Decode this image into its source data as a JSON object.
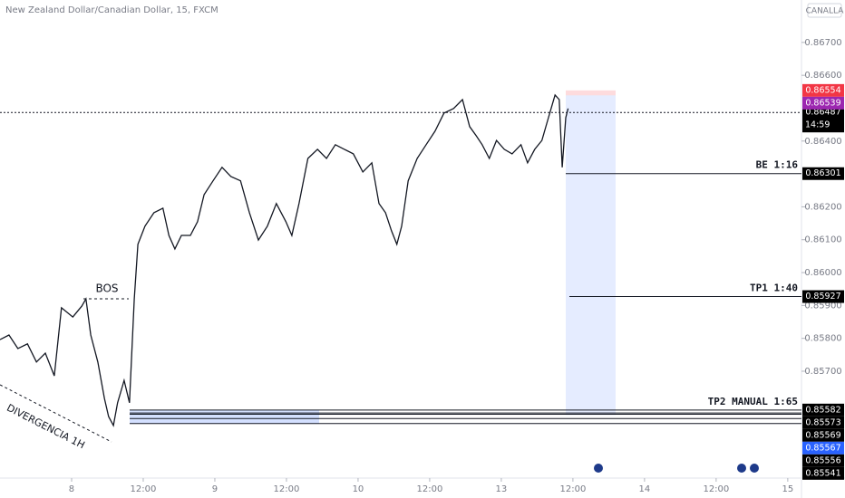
{
  "header": {
    "title": "New Zealand Dollar/Canadian Dollar, 15, FXCM",
    "badge": "CANALLA"
  },
  "chart_data": {
    "type": "line",
    "color": "#131722",
    "x": [
      -12.0,
      -10.5,
      -9.0,
      -7.4,
      -5.9,
      -4.4,
      -2.9,
      -1.7,
      0.2,
      1.7,
      2.4,
      3.2,
      4.4,
      5.5,
      6.2,
      7.0,
      7.7,
      8.8,
      9.7,
      10.5,
      11.1,
      12.3,
      13.8,
      15.3,
      16.3,
      17.3,
      18.4,
      19.9,
      21.1,
      22.2,
      23.7,
      25.2,
      26.7,
      28.3,
      29.8,
      31.3,
      32.8,
      34.3,
      35.9,
      36.9,
      38.1,
      39.6,
      41.2,
      42.7,
      44.2,
      45.7,
      47.2,
      48.8,
      50.3,
      51.5,
      52.6,
      53.6,
      54.5,
      55.3,
      56.4,
      57.9,
      59.4,
      60.9,
      62.4,
      64.0,
      65.5,
      66.7,
      67.8,
      68.8,
      70.0,
      71.2,
      72.5,
      73.8,
      75.3,
      76.4,
      77.6,
      78.8,
      79.9,
      81.0,
      81.7,
      82.2,
      82.8,
      83.2
    ],
    "values": [
      0.85796,
      0.8581,
      0.85769,
      0.85783,
      0.85728,
      0.85755,
      0.85686,
      0.85893,
      0.85865,
      0.85898,
      0.8592,
      0.8581,
      0.85728,
      0.85617,
      0.85562,
      0.85535,
      0.85604,
      0.85672,
      0.85604,
      0.8592,
      0.86086,
      0.86141,
      0.86182,
      0.86196,
      0.86113,
      0.86072,
      0.86113,
      0.86113,
      0.86155,
      0.86237,
      0.86279,
      0.8632,
      0.86292,
      0.86279,
      0.86182,
      0.86099,
      0.86141,
      0.8621,
      0.86155,
      0.86113,
      0.8621,
      0.86347,
      0.86375,
      0.86347,
      0.86389,
      0.86375,
      0.86361,
      0.86306,
      0.86334,
      0.8621,
      0.86182,
      0.86127,
      0.86086,
      0.86141,
      0.86279,
      0.86347,
      0.86389,
      0.8643,
      0.86485,
      0.86499,
      0.86526,
      0.86444,
      0.86416,
      0.86389,
      0.86347,
      0.86402,
      0.86375,
      0.86361,
      0.86389,
      0.86334,
      0.86375,
      0.86402,
      0.86471,
      0.8654,
      0.86526,
      0.8632,
      0.86471,
      0.86499
    ],
    "xlim": [
      -12,
      122.3
    ],
    "ylim": [
      0.85375,
      0.86829
    ],
    "xticks": [
      {
        "value": 0,
        "label": "8"
      },
      {
        "value": 12,
        "label": "12:00"
      },
      {
        "value": 24,
        "label": "9"
      },
      {
        "value": 36,
        "label": "12:00"
      },
      {
        "value": 48,
        "label": "10"
      },
      {
        "value": 60,
        "label": "12:00"
      },
      {
        "value": 72,
        "label": "13"
      },
      {
        "value": 84,
        "label": "12:00"
      },
      {
        "value": 96,
        "label": "14"
      },
      {
        "value": 108,
        "label": "12:00"
      },
      {
        "value": 120,
        "label": "15"
      }
    ],
    "yticks": [
      {
        "value": 0.867,
        "label": "0.86700"
      },
      {
        "value": 0.866,
        "label": "0.86600"
      },
      {
        "value": 0.864,
        "label": "0.86400"
      },
      {
        "value": 0.862,
        "label": "0.86200"
      },
      {
        "value": 0.861,
        "label": "0.86100"
      },
      {
        "value": 0.86,
        "label": "0.86000"
      },
      {
        "value": 0.859,
        "label": "0.85900"
      },
      {
        "value": 0.858,
        "label": "0.85800"
      },
      {
        "value": 0.857,
        "label": "0.85700"
      }
    ],
    "last_price": 0.86487,
    "countdown": "14:59",
    "annotations": {
      "bos": "BOS",
      "divergence": "DIVERGENCIA 1H"
    },
    "levels": [
      {
        "label": "BE 1:16",
        "value": 0.86301
      },
      {
        "label": "TP1 1:40",
        "value": 0.85927
      },
      {
        "label": "TP2 MANUAL 1:65",
        "value": 0.85582
      }
    ],
    "price_labels": [
      {
        "value": 0.86554,
        "color": "#f23645"
      },
      {
        "value": 0.86539,
        "color": "#9c27b0"
      },
      {
        "value": 0.85573,
        "color": "#000000"
      },
      {
        "value": 0.85569,
        "color": "#000000"
      },
      {
        "value": 0.85567,
        "color": "#2962ff"
      },
      {
        "value": 0.85556,
        "color": "#000000"
      },
      {
        "value": 0.85541,
        "color": "#000000"
      }
    ]
  }
}
